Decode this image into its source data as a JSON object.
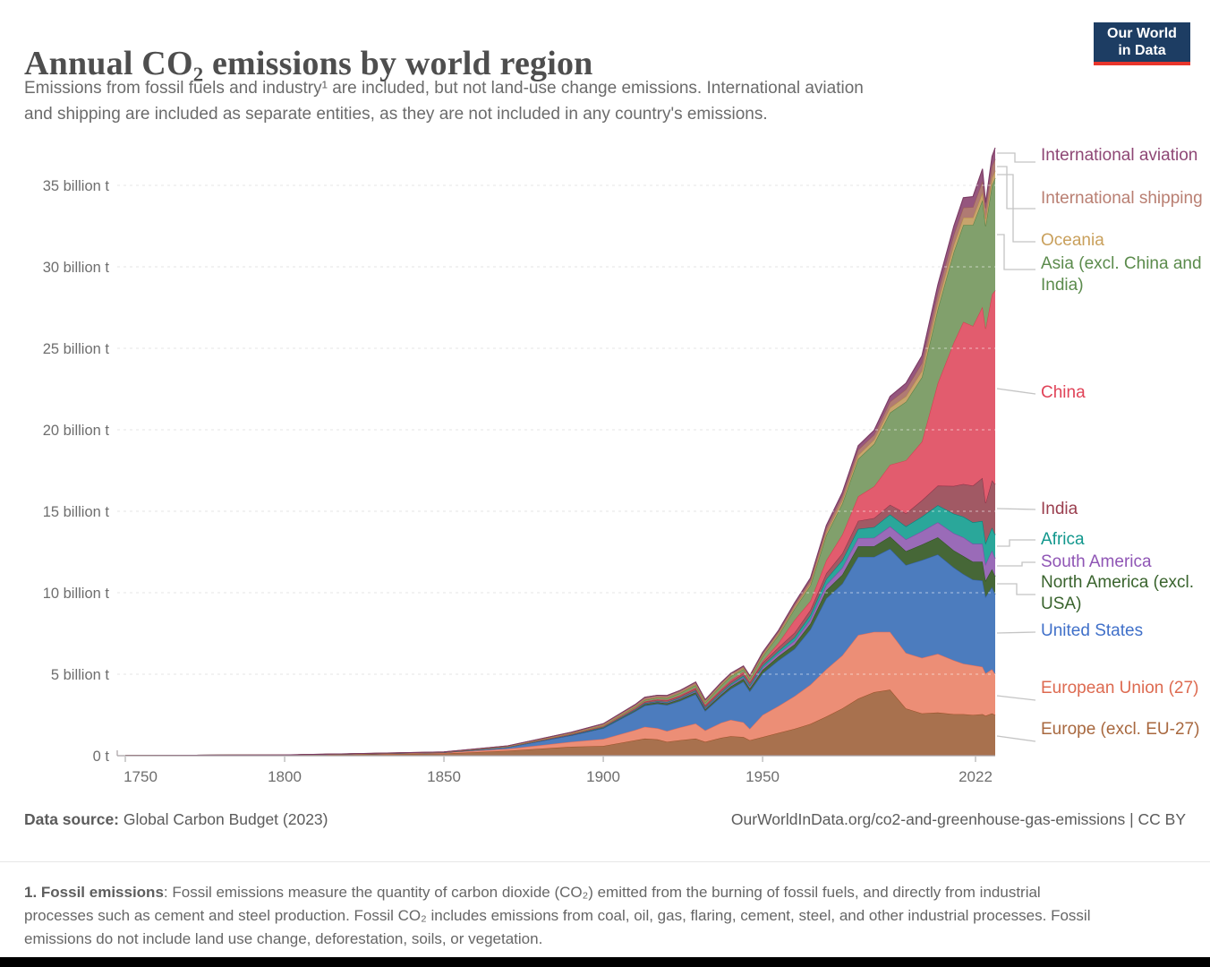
{
  "header": {
    "title": "Annual CO₂ emissions by world region",
    "subtitle_line1": "Emissions from fossil fuels and industry¹ are included, but not land-use change emissions. International aviation",
    "subtitle_line2": "and shipping are included as separate entities, as they are not included in any country's emissions.",
    "logo": {
      "line1": "Our World",
      "line2": "in Data",
      "bg_color": "#1d3d63",
      "accent_color": "#e8352b"
    }
  },
  "chart_data": {
    "type": "area",
    "stacked": true,
    "unit": "billion tonnes CO₂",
    "xlim": [
      1750,
      2023
    ],
    "ylim": [
      0,
      35
    ],
    "grid": "dashed-horizontal",
    "legend_position": "right",
    "x": [
      1750,
      1800,
      1850,
      1870,
      1890,
      1900,
      1910,
      1913,
      1917,
      1920,
      1924,
      1929,
      1932,
      1937,
      1940,
      1944,
      1946,
      1950,
      1955,
      1960,
      1965,
      1970,
      1975,
      1980,
      1985,
      1990,
      1995,
      2000,
      2005,
      2010,
      2013,
      2016,
      2019,
      2020,
      2022,
      2023
    ],
    "series": [
      {
        "id": "europe_excl_eu27",
        "name": "Europe (excl. EU-27)",
        "fill": "#A8714E",
        "stroke": "#9A5129",
        "values": [
          0.01,
          0.03,
          0.13,
          0.3,
          0.55,
          0.6,
          0.95,
          1.05,
          1.0,
          0.85,
          0.95,
          1.05,
          0.85,
          1.1,
          1.2,
          1.15,
          0.95,
          1.15,
          1.4,
          1.65,
          1.95,
          2.4,
          2.9,
          3.5,
          3.9,
          4.05,
          2.9,
          2.6,
          2.65,
          2.55,
          2.55,
          2.5,
          2.55,
          2.45,
          2.6,
          2.5
        ]
      },
      {
        "id": "eu27",
        "name": "European Union (27)",
        "fill": "#EC8E76",
        "stroke": "#E56E5A",
        "values": [
          0.0,
          0.01,
          0.05,
          0.12,
          0.3,
          0.42,
          0.62,
          0.72,
          0.68,
          0.66,
          0.78,
          0.92,
          0.7,
          0.92,
          1.0,
          0.9,
          0.7,
          1.35,
          1.65,
          2.0,
          2.4,
          2.9,
          3.25,
          3.9,
          3.7,
          3.55,
          3.4,
          3.4,
          3.6,
          3.3,
          3.1,
          3.05,
          2.9,
          2.6,
          2.7,
          2.5
        ]
      },
      {
        "id": "united_states",
        "name": "United States",
        "fill": "#4C7CBE",
        "stroke": "#3360A9",
        "values": [
          0,
          0.001,
          0.02,
          0.1,
          0.4,
          0.66,
          1.15,
          1.3,
          1.5,
          1.6,
          1.62,
          1.8,
          1.2,
          1.6,
          1.9,
          2.5,
          2.3,
          2.55,
          2.8,
          2.9,
          3.4,
          4.35,
          4.4,
          4.8,
          4.6,
          5.1,
          5.4,
          6.0,
          6.1,
          5.7,
          5.5,
          5.25,
          5.3,
          4.7,
          5.05,
          4.9
        ]
      },
      {
        "id": "north_america_excl_usa",
        "name": "North America (excl. USA)",
        "fill": "#466737",
        "stroke": "#2F5420",
        "values": [
          0,
          0,
          0.005,
          0.01,
          0.02,
          0.04,
          0.07,
          0.09,
          0.1,
          0.1,
          0.11,
          0.12,
          0.1,
          0.12,
          0.14,
          0.17,
          0.17,
          0.21,
          0.25,
          0.28,
          0.35,
          0.5,
          0.55,
          0.65,
          0.65,
          0.75,
          0.85,
          0.95,
          1.05,
          1.05,
          1.1,
          1.1,
          1.15,
          1.0,
          1.1,
          1.1
        ]
      },
      {
        "id": "south_america",
        "name": "South America",
        "fill": "#9A6BB8",
        "stroke": "#8347A9",
        "values": [
          0,
          0,
          0.002,
          0.005,
          0.01,
          0.01,
          0.02,
          0.03,
          0.03,
          0.04,
          0.05,
          0.06,
          0.05,
          0.07,
          0.08,
          0.09,
          0.1,
          0.13,
          0.17,
          0.21,
          0.26,
          0.33,
          0.43,
          0.5,
          0.52,
          0.62,
          0.72,
          0.82,
          0.92,
          1.05,
          1.15,
          1.1,
          1.1,
          1.0,
          1.15,
          1.1
        ]
      },
      {
        "id": "africa",
        "name": "Africa",
        "fill": "#2AA79A",
        "stroke": "#00847E",
        "values": [
          0,
          0,
          0.002,
          0.005,
          0.01,
          0.01,
          0.02,
          0.03,
          0.03,
          0.04,
          0.04,
          0.05,
          0.05,
          0.07,
          0.08,
          0.09,
          0.1,
          0.13,
          0.16,
          0.21,
          0.28,
          0.36,
          0.46,
          0.56,
          0.66,
          0.73,
          0.8,
          0.9,
          1.05,
          1.2,
          1.27,
          1.32,
          1.4,
          1.3,
          1.4,
          1.45
        ]
      },
      {
        "id": "india",
        "name": "India",
        "fill": "#A15964",
        "stroke": "#8C3449",
        "values": [
          0,
          0,
          0.005,
          0.01,
          0.03,
          0.05,
          0.07,
          0.08,
          0.09,
          0.09,
          0.1,
          0.11,
          0.11,
          0.13,
          0.14,
          0.15,
          0.15,
          0.18,
          0.22,
          0.29,
          0.3,
          0.35,
          0.42,
          0.5,
          0.55,
          0.6,
          0.8,
          1.0,
          1.2,
          1.7,
          2.0,
          2.25,
          2.65,
          2.45,
          2.9,
          3.1
        ]
      },
      {
        "id": "china",
        "name": "China",
        "fill": "#E25C6E",
        "stroke": "#D73C50",
        "values": [
          0,
          0,
          0.001,
          0.002,
          0.01,
          0.02,
          0.02,
          0.03,
          0.03,
          0.04,
          0.05,
          0.06,
          0.06,
          0.08,
          0.1,
          0.09,
          0.08,
          0.09,
          0.27,
          0.78,
          0.55,
          0.8,
          1.15,
          1.5,
          1.95,
          2.45,
          3.25,
          3.6,
          6.3,
          8.8,
          9.95,
          9.8,
          10.5,
          10.7,
          11.4,
          11.9
        ]
      },
      {
        "id": "asia_excl_china_india",
        "name": "Asia (excl. China and India)",
        "fill": "#81A06C",
        "stroke": "#588144",
        "values": [
          0,
          0,
          0.002,
          0.01,
          0.03,
          0.05,
          0.08,
          0.09,
          0.1,
          0.11,
          0.13,
          0.16,
          0.15,
          0.21,
          0.23,
          0.18,
          0.16,
          0.3,
          0.47,
          0.68,
          0.95,
          1.55,
          1.9,
          2.3,
          2.6,
          3.2,
          3.6,
          3.95,
          4.55,
          5.55,
          5.95,
          6.2,
          6.55,
          6.3,
          6.7,
          6.9
        ]
      },
      {
        "id": "oceania",
        "name": "Oceania",
        "fill": "#C8A46C",
        "stroke": "#B68C49",
        "values": [
          0,
          0,
          0.003,
          0.01,
          0.02,
          0.02,
          0.03,
          0.03,
          0.03,
          0.04,
          0.04,
          0.05,
          0.05,
          0.06,
          0.06,
          0.07,
          0.07,
          0.07,
          0.09,
          0.11,
          0.13,
          0.17,
          0.2,
          0.23,
          0.26,
          0.3,
          0.34,
          0.39,
          0.42,
          0.45,
          0.45,
          0.45,
          0.46,
          0.44,
          0.46,
          0.45
        ]
      },
      {
        "id": "intl_shipping",
        "name": "International shipping",
        "fill": "#B07B73",
        "stroke": "#9C5F56",
        "values": [
          0,
          0.001,
          0.01,
          0.03,
          0.06,
          0.08,
          0.11,
          0.13,
          0.12,
          0.12,
          0.12,
          0.13,
          0.11,
          0.12,
          0.1,
          0.09,
          0.1,
          0.12,
          0.14,
          0.16,
          0.2,
          0.25,
          0.28,
          0.33,
          0.3,
          0.37,
          0.42,
          0.48,
          0.56,
          0.6,
          0.62,
          0.64,
          0.7,
          0.65,
          0.71,
          0.71
        ]
      },
      {
        "id": "intl_aviation",
        "name": "International aviation",
        "fill": "#95567E",
        "stroke": "#7B3B64",
        "values": [
          0,
          0,
          0,
          0,
          0,
          0,
          0,
          0,
          0,
          0.002,
          0.003,
          0.01,
          0.01,
          0.02,
          0.03,
          0.03,
          0.04,
          0.06,
          0.08,
          0.1,
          0.13,
          0.17,
          0.2,
          0.25,
          0.28,
          0.33,
          0.38,
          0.45,
          0.5,
          0.54,
          0.6,
          0.65,
          0.75,
          0.35,
          0.6,
          0.7
        ]
      }
    ],
    "y_ticks": [
      {
        "value": 0,
        "label": "0 t"
      },
      {
        "value": 5,
        "label": "5 billion t"
      },
      {
        "value": 10,
        "label": "10 billion t"
      },
      {
        "value": 15,
        "label": "15 billion t"
      },
      {
        "value": 20,
        "label": "20 billion t"
      },
      {
        "value": 25,
        "label": "25 billion t"
      },
      {
        "value": 30,
        "label": "30 billion t"
      },
      {
        "value": 35,
        "label": "35 billion t"
      }
    ],
    "x_ticks": [
      {
        "year": 1750,
        "label": "1750"
      },
      {
        "year": 1800,
        "label": "1800"
      },
      {
        "year": 1850,
        "label": "1850"
      },
      {
        "year": 1900,
        "label": "1900"
      },
      {
        "year": 1950,
        "label": "1950"
      },
      {
        "year": 2022,
        "label": "2022"
      }
    ]
  },
  "legend": {
    "items": [
      {
        "label": "International aviation",
        "color": "#8E4775"
      },
      {
        "label": "International shipping",
        "color": "#B97F72"
      },
      {
        "label": "Oceania",
        "color": "#C9A05C"
      },
      {
        "label": "Asia (excl. China and India)",
        "color": "#5B8B4C"
      },
      {
        "label": "China",
        "color": "#E04358"
      },
      {
        "label": "India",
        "color": "#9A3E4E"
      },
      {
        "label": "Africa",
        "color": "#12978D"
      },
      {
        "label": "South America",
        "color": "#8F55B5"
      },
      {
        "label": "North America (excl. USA)",
        "color": "#39632D"
      },
      {
        "label": "United States",
        "color": "#4070C9"
      },
      {
        "label": "European Union (27)",
        "color": "#DD6A50"
      },
      {
        "label": "Europe (excl. EU-27)",
        "color": "#A8683F"
      }
    ]
  },
  "footer": {
    "source_lead": "Data source:",
    "source_text": " Global Carbon Budget (2023)",
    "link_text": "OurWorldInData.org/co2-and-greenhouse-gas-emissions | CC BY"
  },
  "footnote": {
    "lead": "1. Fossil emissions",
    "text": ": Fossil emissions measure the quantity of carbon dioxide (CO₂) emitted from the burning of fossil fuels, and directly from industrial processes such as cement and steel production. Fossil CO₂ includes emissions from coal, oil, gas, flaring, cement, steel, and other industrial processes. Fossil emissions do not include land use change, deforestation, soils, or vegetation."
  }
}
